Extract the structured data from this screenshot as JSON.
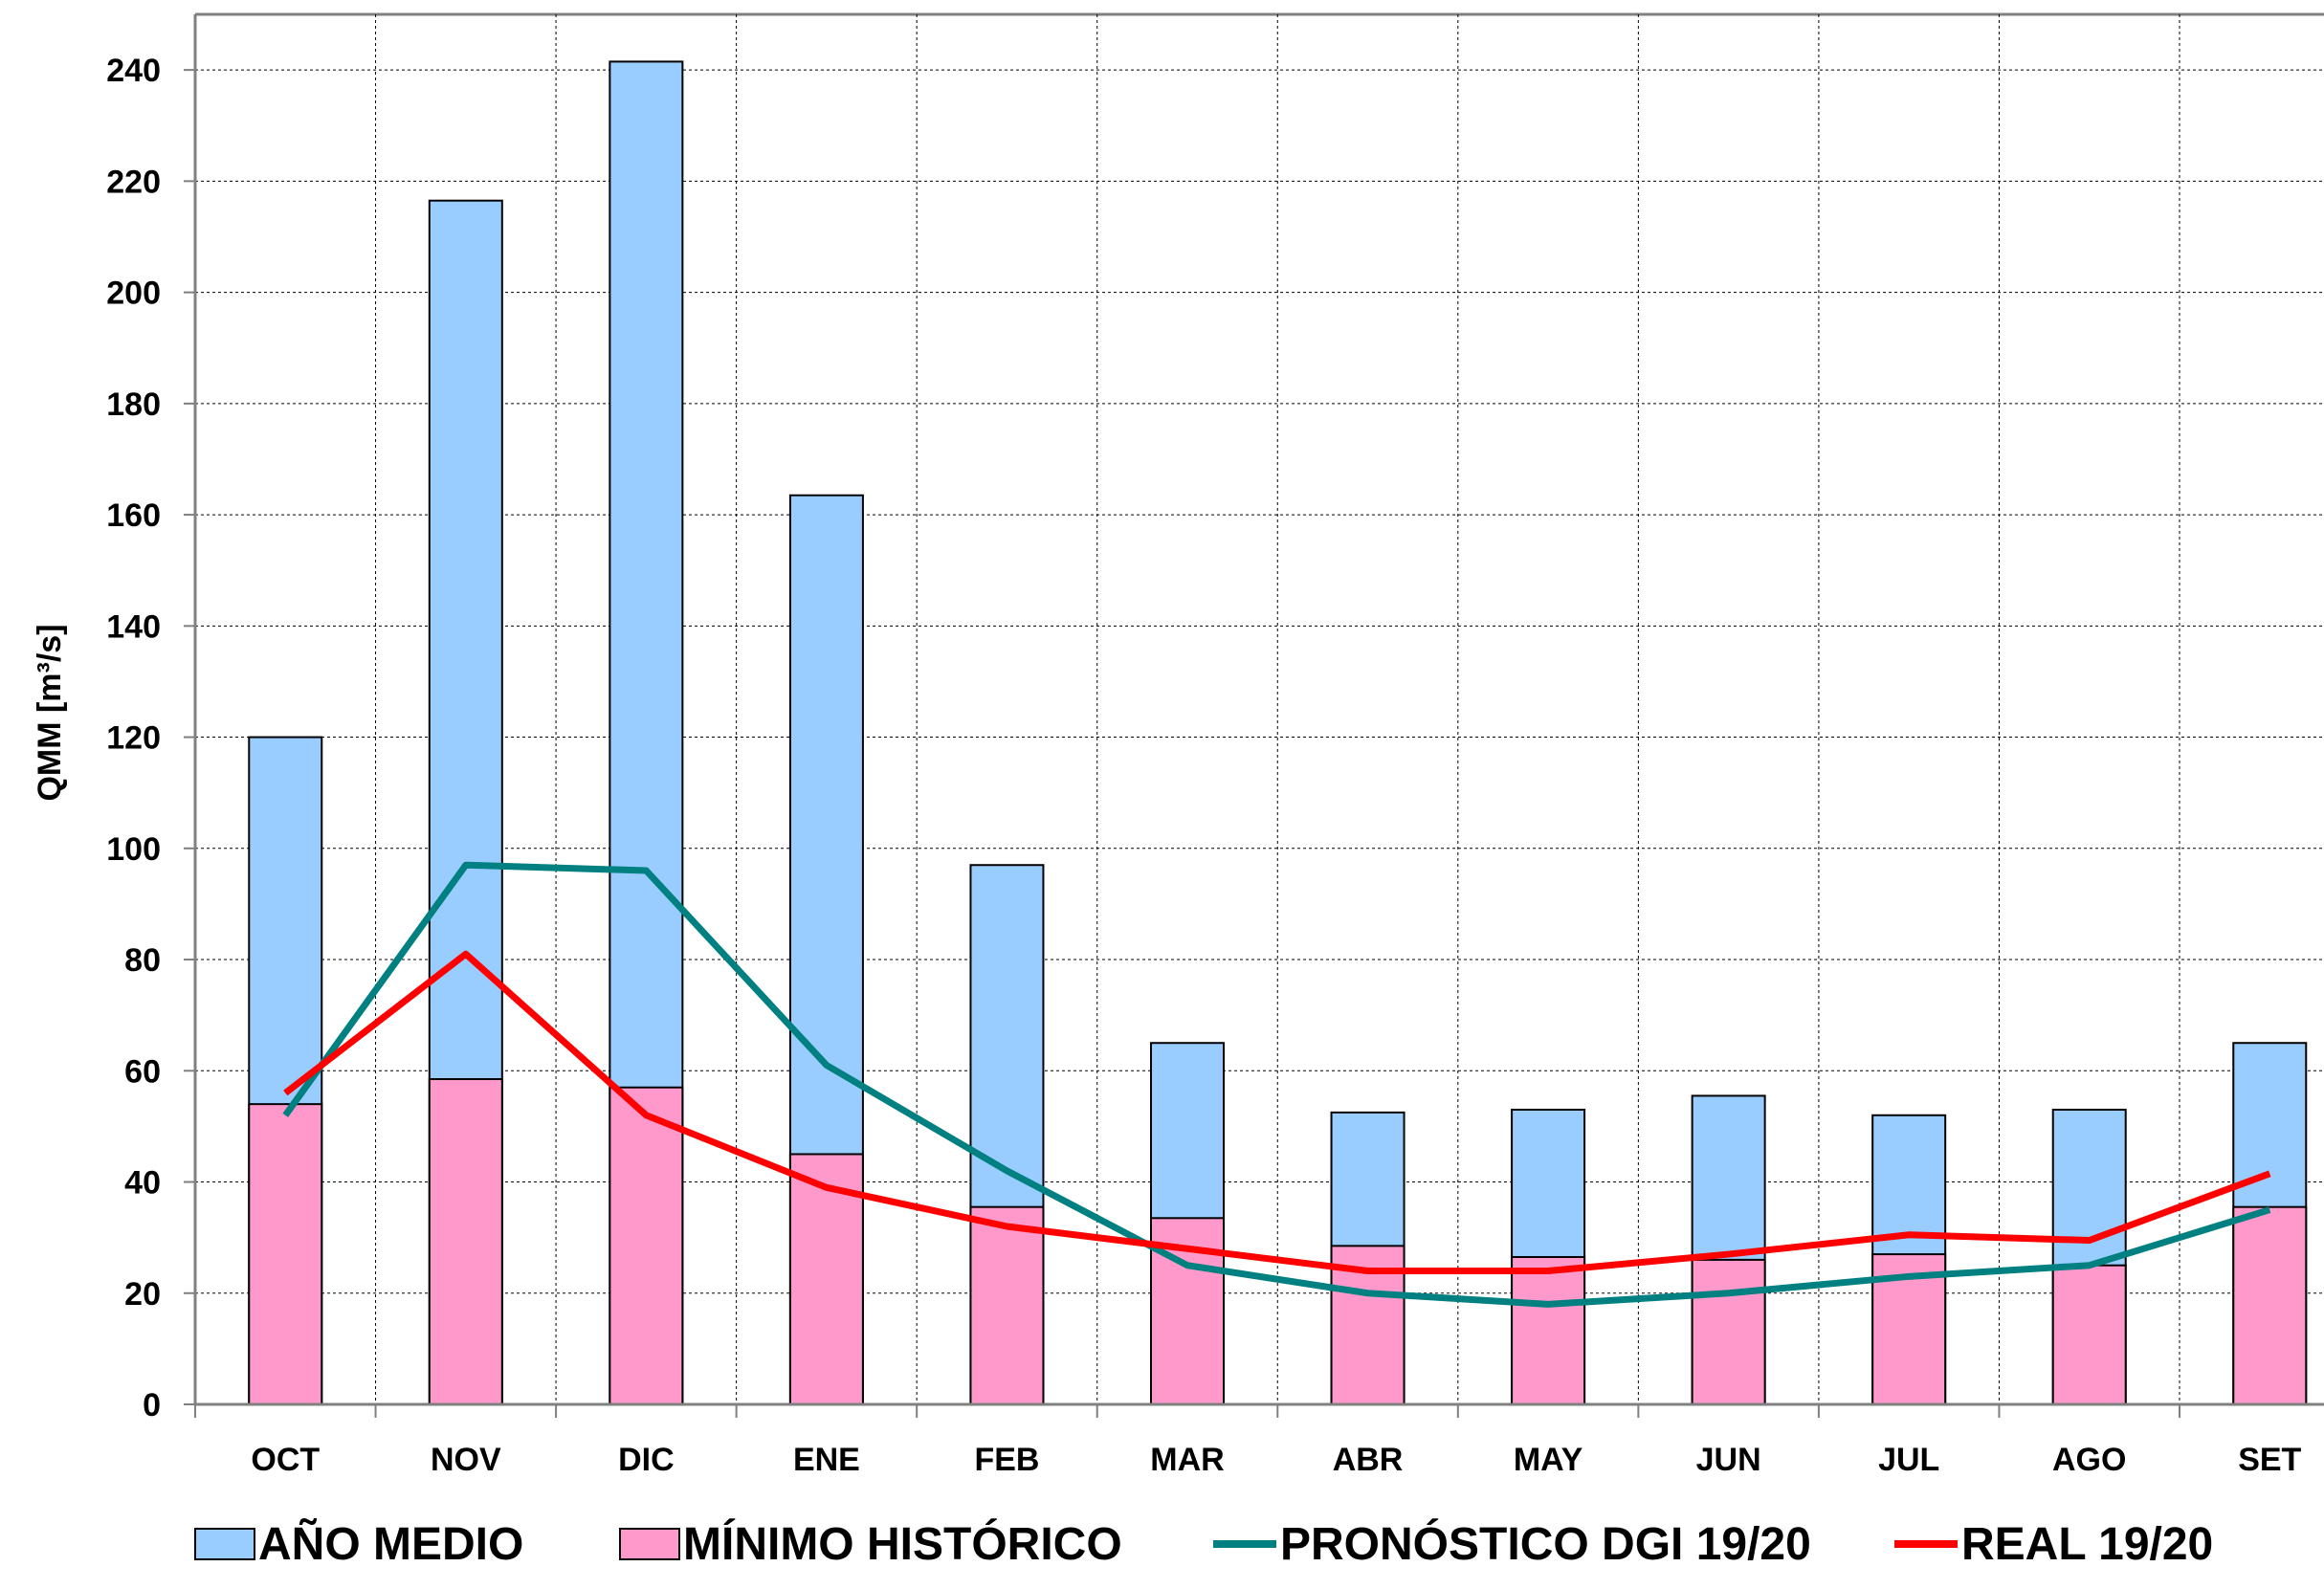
{
  "chart_data": {
    "type": "bar",
    "title": "",
    "xlabel": "",
    "ylabel": "QMM [m³/s]",
    "ylim": [
      0,
      250
    ],
    "yticks": [
      0,
      20,
      40,
      60,
      80,
      100,
      120,
      140,
      160,
      180,
      200,
      220,
      240
    ],
    "grid": true,
    "legend_position": "bottom",
    "categories": [
      "OCT",
      "NOV",
      "DIC",
      "ENE",
      "FEB",
      "MAR",
      "ABR",
      "MAY",
      "JUN",
      "JUL",
      "AGO",
      "SET"
    ],
    "series": [
      {
        "name": "AÑO MEDIO",
        "kind": "bar",
        "color": "#99CCFF",
        "values": [
          120,
          216.5,
          241.5,
          163.5,
          97,
          65,
          52.5,
          53,
          55.5,
          52,
          53,
          65
        ]
      },
      {
        "name": "MÍNIMO HISTÓRICO",
        "kind": "bar",
        "color": "#FF99CC",
        "values": [
          54,
          58.5,
          57,
          45,
          35.5,
          33.5,
          28.5,
          26.5,
          26,
          27,
          25,
          35.5
        ]
      },
      {
        "name": "PRONÓSTICO DGI 19/20",
        "kind": "line",
        "color": "#008080",
        "values": [
          52,
          97,
          96,
          61,
          42,
          25,
          20,
          18,
          20,
          23,
          25,
          35
        ]
      },
      {
        "name": "REAL 19/20",
        "kind": "line",
        "color": "#FF0000",
        "values": [
          56,
          81,
          52,
          39,
          32,
          28,
          24,
          24,
          27,
          30.5,
          29.5,
          41.5
        ]
      }
    ]
  }
}
